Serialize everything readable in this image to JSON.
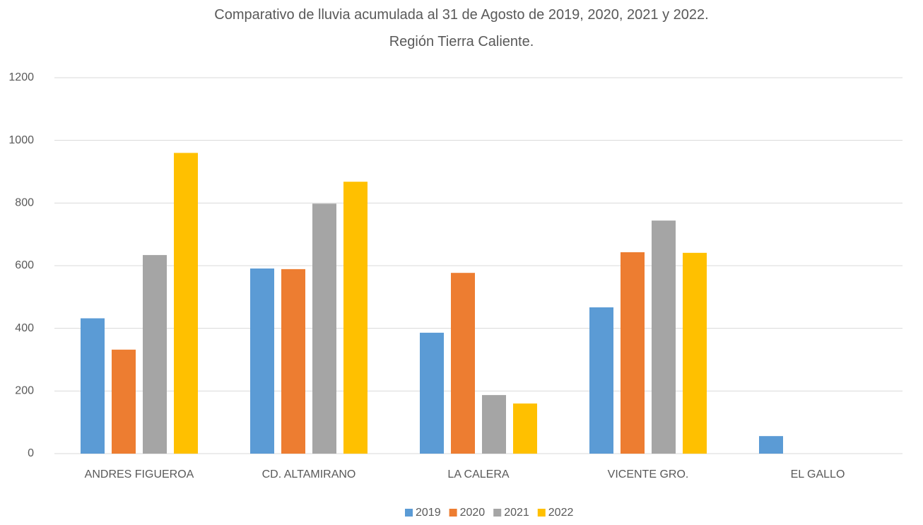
{
  "chart_data": {
    "type": "bar",
    "title": "Comparativo de lluvia acumulada al 31 de Agosto de 2019, 2020, 2021 y 2022. Región Tierra Caliente.",
    "categories": [
      "ANDRES FIGUEROA",
      "CD. ALTAMIRANO",
      "LA CALERA",
      "VICENTE GRO.",
      "EL GALLO"
    ],
    "series": [
      {
        "name": "2019",
        "color": "#5b9bd5",
        "values": [
          432,
          591,
          386,
          467,
          56
        ]
      },
      {
        "name": "2020",
        "color": "#ed7d31",
        "values": [
          332,
          589,
          577,
          643,
          null
        ]
      },
      {
        "name": "2021",
        "color": "#a5a5a5",
        "values": [
          634,
          798,
          187,
          744,
          null
        ]
      },
      {
        "name": "2022",
        "color": "#ffc000",
        "values": [
          960,
          868,
          160,
          641,
          null
        ]
      }
    ],
    "ylim": [
      0,
      1200
    ],
    "yticks": [
      0,
      200,
      400,
      600,
      800,
      1000,
      1200
    ],
    "grid": true,
    "legend": "bottom"
  }
}
